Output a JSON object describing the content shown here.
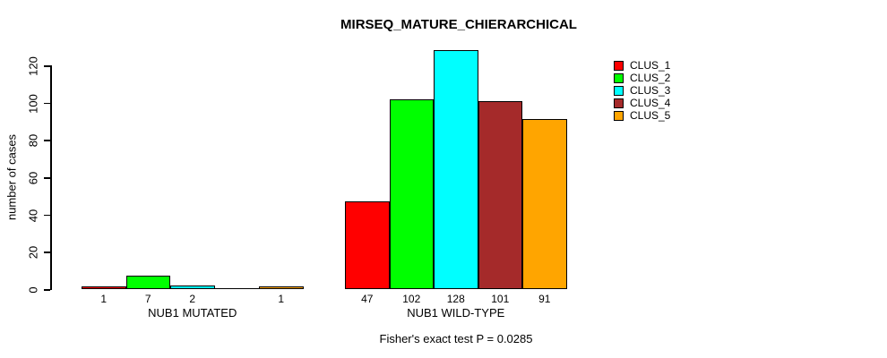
{
  "chart_data": {
    "type": "bar",
    "title": "MIRSEQ_MATURE_CHIERARCHICAL",
    "ylabel": "number of cases",
    "xlabel": "",
    "footnote": "Fisher's exact test P = 0.0285",
    "ylim": [
      0,
      128
    ],
    "yticks": [
      0,
      20,
      40,
      60,
      80,
      100,
      120
    ],
    "grid": false,
    "legend_position": "top-right",
    "bar_value_labels_shown": true,
    "categories": [
      "NUB1 MUTATED",
      "NUB1 WILD-TYPE"
    ],
    "series": [
      {
        "name": "CLUS_1",
        "color": "#FF0000",
        "values": [
          1,
          47
        ]
      },
      {
        "name": "CLUS_2",
        "color": "#00FF00",
        "values": [
          7,
          102
        ]
      },
      {
        "name": "CLUS_3",
        "color": "#00FFFF",
        "values": [
          2,
          128
        ]
      },
      {
        "name": "CLUS_4",
        "color": "#A52A2A",
        "values": [
          0,
          101
        ]
      },
      {
        "name": "CLUS_5",
        "color": "#FFA500",
        "values": [
          1,
          91
        ]
      }
    ]
  },
  "colors": {
    "background": "#FFFFFF",
    "axis": "#000000",
    "bar_border": "#000000",
    "text": "#000000"
  }
}
